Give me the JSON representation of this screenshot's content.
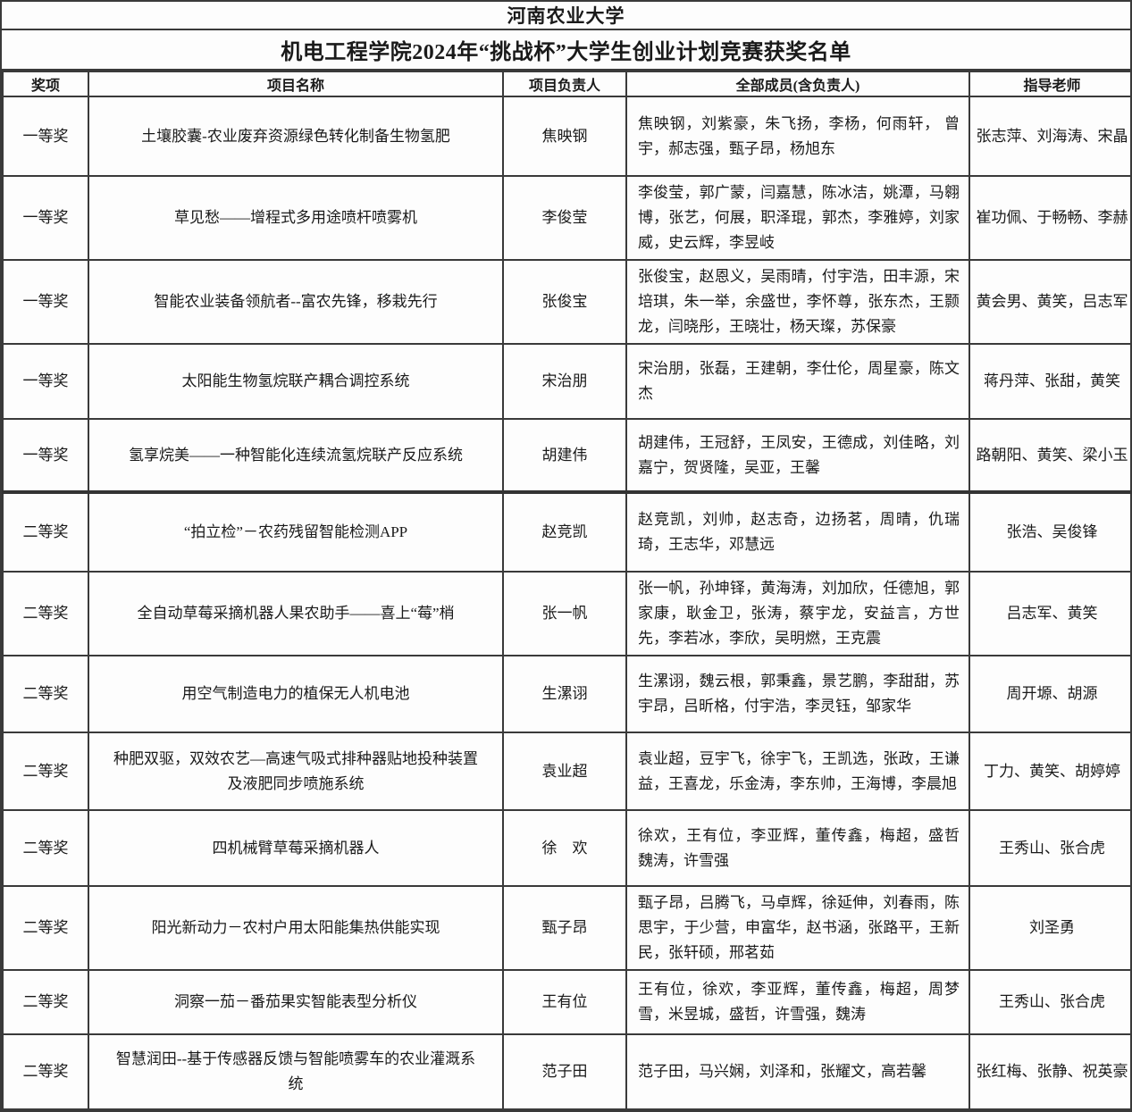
{
  "title": "河南农业大学",
  "subtitle": "机电工程学院2024年“挑战杯”大学生创业计划竞赛获奖名单",
  "table": {
    "headers": [
      "奖项",
      "项目名称",
      "项目负责人",
      "全部成员(含负责人)",
      "指导老师"
    ],
    "rows": [
      {
        "award": "一等奖",
        "project": "土壤胶囊-农业废弃资源绿色转化制备生物氢肥",
        "leader": "焦映钢",
        "members": "焦映钢，刘紫豪，朱飞扬，李杨，何雨轩， 曾宇，郝志强，甄子昂，杨旭东",
        "teachers": "张志萍、刘海涛、宋晶"
      },
      {
        "award": "一等奖",
        "project": "草见愁——增程式多用途喷杆喷雾机",
        "leader": "李俊莹",
        "members": "李俊莹，郭广蒙，闫嘉慧，陈冰洁，姚潭，马翱 博，张艺，何展，职泽琨，郭杰，李雅婷，刘家 威，史云辉，李昱岐",
        "teachers": "崔功佩、于畅畅、李赫"
      },
      {
        "award": "一等奖",
        "project": "智能农业装备领航者--富农先锋，移栽先行",
        "leader": "张俊宝",
        "members": "张俊宝，赵恩义，吴雨晴，付宇浩，田丰源，宋 培琪，朱一举，余盛世，李怀尊，张东杰，王颢 龙，闫晓彤，王晓壮，杨天璨，苏保豪",
        "teachers": "黄会男、黄笑，吕志军"
      },
      {
        "award": "一等奖",
        "project": "太阳能生物氢烷联产耦合调控系统",
        "leader": "宋治朋",
        "members": "宋治朋，张磊，王建朝，李仕伦，周星豪，陈文 杰",
        "teachers": "蒋丹萍、张甜，黄笑"
      },
      {
        "award": "一等奖",
        "project": "氢享烷美——一种智能化连续流氢烷联产反应系统",
        "leader": "胡建伟",
        "members": "胡建伟，王冠舒，王凤安，王德成，刘佳略，刘 嘉宁，贺贤隆，吴亚，王馨",
        "teachers": "路朝阳、黄笑、梁小玉"
      },
      {
        "award": "二等奖",
        "project": "“拍立检”－农药残留智能检测APP",
        "leader": "赵竞凯",
        "members": "赵竞凯，刘帅，赵志奇，边扬茗，周晴，仇瑞琦，王志华，邓慧远",
        "teachers": "张浩、吴俊锋"
      },
      {
        "award": "二等奖",
        "project": "全自动草莓采摘机器人果农助手——喜上“莓”梢",
        "leader": "张一帆",
        "members": "张一帆，孙坤铎，黄海涛，刘加欣，任德旭，郭家康，耿金卫，张涛，蔡宇龙，安益言，方世先，李若冰，李欣，吴明燃，王克震",
        "teachers": "吕志军、黄笑"
      },
      {
        "award": "二等奖",
        "project": "用空气制造电力的植保无人机电池",
        "leader": "生漯诩",
        "members": "生漯诩，魏云根，郭秉鑫，景艺鹏，李甜甜，苏 宇昂，吕昕格，付宇浩，李灵钰，邹家华",
        "teachers": "周开塬、胡源"
      },
      {
        "award": "二等奖",
        "project": "种肥双驱，双效农艺—高速气吸式排种器贴地投种装置及液肥同步喷施系统",
        "leader": "袁业超",
        "members": "袁业超，豆宇飞，徐宇飞，王凯选，张政，王谦益，王喜龙，乐金涛，李东帅，王海博，李晨旭",
        "teachers": "丁力、黄笑、胡婷婷"
      },
      {
        "award": "二等奖",
        "project": "四机械臂草莓采摘机器人",
        "leader": "徐　欢",
        "members": "徐欢，王有位，李亚辉，董传鑫，梅超，盛哲 魏涛，许雪强",
        "teachers": "王秀山、张合虎"
      },
      {
        "award": "二等奖",
        "project": "阳光新动力－农村户用太阳能集热供能实现",
        "leader": "甄子昂",
        "members": "甄子昂，吕腾飞，马卓辉，徐延伸，刘春雨，陈思宇，于少营，申富华，赵书涵，张路平，王新民，张轩硕，邢茗茹",
        "teachers": "刘圣勇"
      },
      {
        "award": "二等奖",
        "project": "洞察一茄－番茄果实智能表型分析仪",
        "leader": "王有位",
        "members": "王有位，徐欢，李亚辉，董传鑫，梅超，周梦雪，米昱城，盛哲，许雪强，魏涛",
        "teachers": "王秀山、张合虎"
      },
      {
        "award": "二等奖",
        "project": "智慧润田--基于传感器反馈与智能喷雾车的农业灌溉系统",
        "leader": "范子田",
        "members": "范子田，马兴娴，刘泽和，张耀文，高若馨",
        "teachers": "张红梅、张静、祝英豪"
      }
    ]
  }
}
